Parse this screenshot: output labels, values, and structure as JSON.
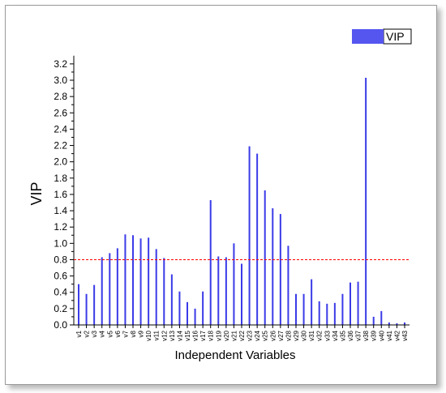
{
  "chart_data": {
    "type": "bar",
    "xlabel": "Independent Variables",
    "ylabel": "VIP",
    "ylim": [
      0,
      3.3
    ],
    "yticks": [
      0.0,
      0.2,
      0.4,
      0.6,
      0.8,
      1.0,
      1.2,
      1.4,
      1.6,
      1.8,
      2.0,
      2.2,
      2.4,
      2.6,
      2.8,
      3.0,
      3.2
    ],
    "ytick_labels": [
      "0.0",
      "0.2",
      "0.4",
      "0.6",
      "0.8",
      "1.0",
      "1.2",
      "1.4",
      "1.6",
      "1.8",
      "2.0",
      "2.2",
      "2.4",
      "2.6",
      "2.8",
      "3.0",
      "3.2"
    ],
    "categories": [
      "v1",
      "v2",
      "v3",
      "v4",
      "v5",
      "v6",
      "v7",
      "v8",
      "v9",
      "v10",
      "v11",
      "v12",
      "v13",
      "v14",
      "v15",
      "v16",
      "v17",
      "v18",
      "v19",
      "v20",
      "v21",
      "v22",
      "v23",
      "v24",
      "v25",
      "v26",
      "v27",
      "v28",
      "v29",
      "v30",
      "v31",
      "v32",
      "v33",
      "v34",
      "v35",
      "v36",
      "v37",
      "v38",
      "v39",
      "v40",
      "v41",
      "v42",
      "v43"
    ],
    "series": [
      {
        "name": "VIP",
        "color": "#3b3be8",
        "values": [
          0.5,
          0.38,
          0.49,
          0.83,
          0.88,
          0.94,
          1.11,
          1.1,
          1.06,
          1.07,
          0.93,
          0.82,
          0.62,
          0.41,
          0.28,
          0.2,
          0.41,
          1.53,
          0.84,
          0.83,
          1.0,
          0.75,
          2.19,
          2.1,
          1.65,
          1.43,
          1.36,
          0.97,
          0.38,
          0.38,
          0.56,
          0.29,
          0.26,
          0.27,
          0.38,
          0.52,
          0.53,
          3.03,
          0.1,
          0.17,
          0.03,
          0.02,
          0.03
        ]
      }
    ],
    "threshold": {
      "value": 0.8,
      "color": "#ff0000",
      "style": "dashed"
    },
    "legend": {
      "position": "top-right"
    },
    "grid": false
  }
}
